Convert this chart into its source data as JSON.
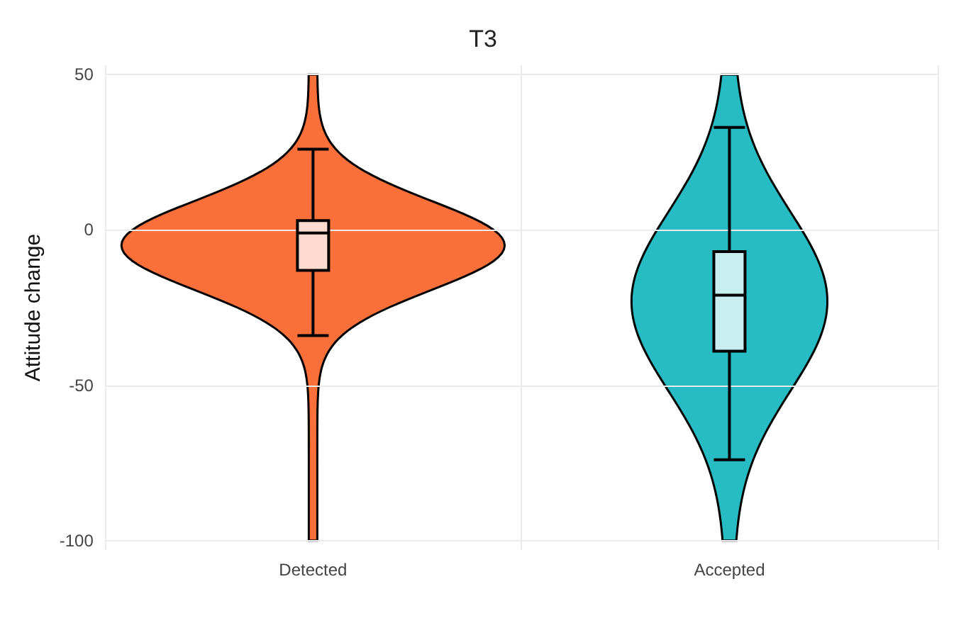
{
  "chart_data": {
    "type": "box",
    "title": "T3",
    "ylabel": "Attitude change",
    "categories": [
      "Detected",
      "Accepted"
    ],
    "colors": [
      "#fedbce",
      "#c9eef0"
    ],
    "boxes": [
      {
        "low": -34,
        "q1": -13,
        "median": -1,
        "q3": 3,
        "high": 26
      },
      {
        "low": -74,
        "q1": -39,
        "median": -21,
        "q3": -7,
        "high": 33
      }
    ],
    "ylim": [
      -103,
      53
    ],
    "yticks": [
      -100,
      -50,
      0,
      50
    ],
    "grid": true
  }
}
